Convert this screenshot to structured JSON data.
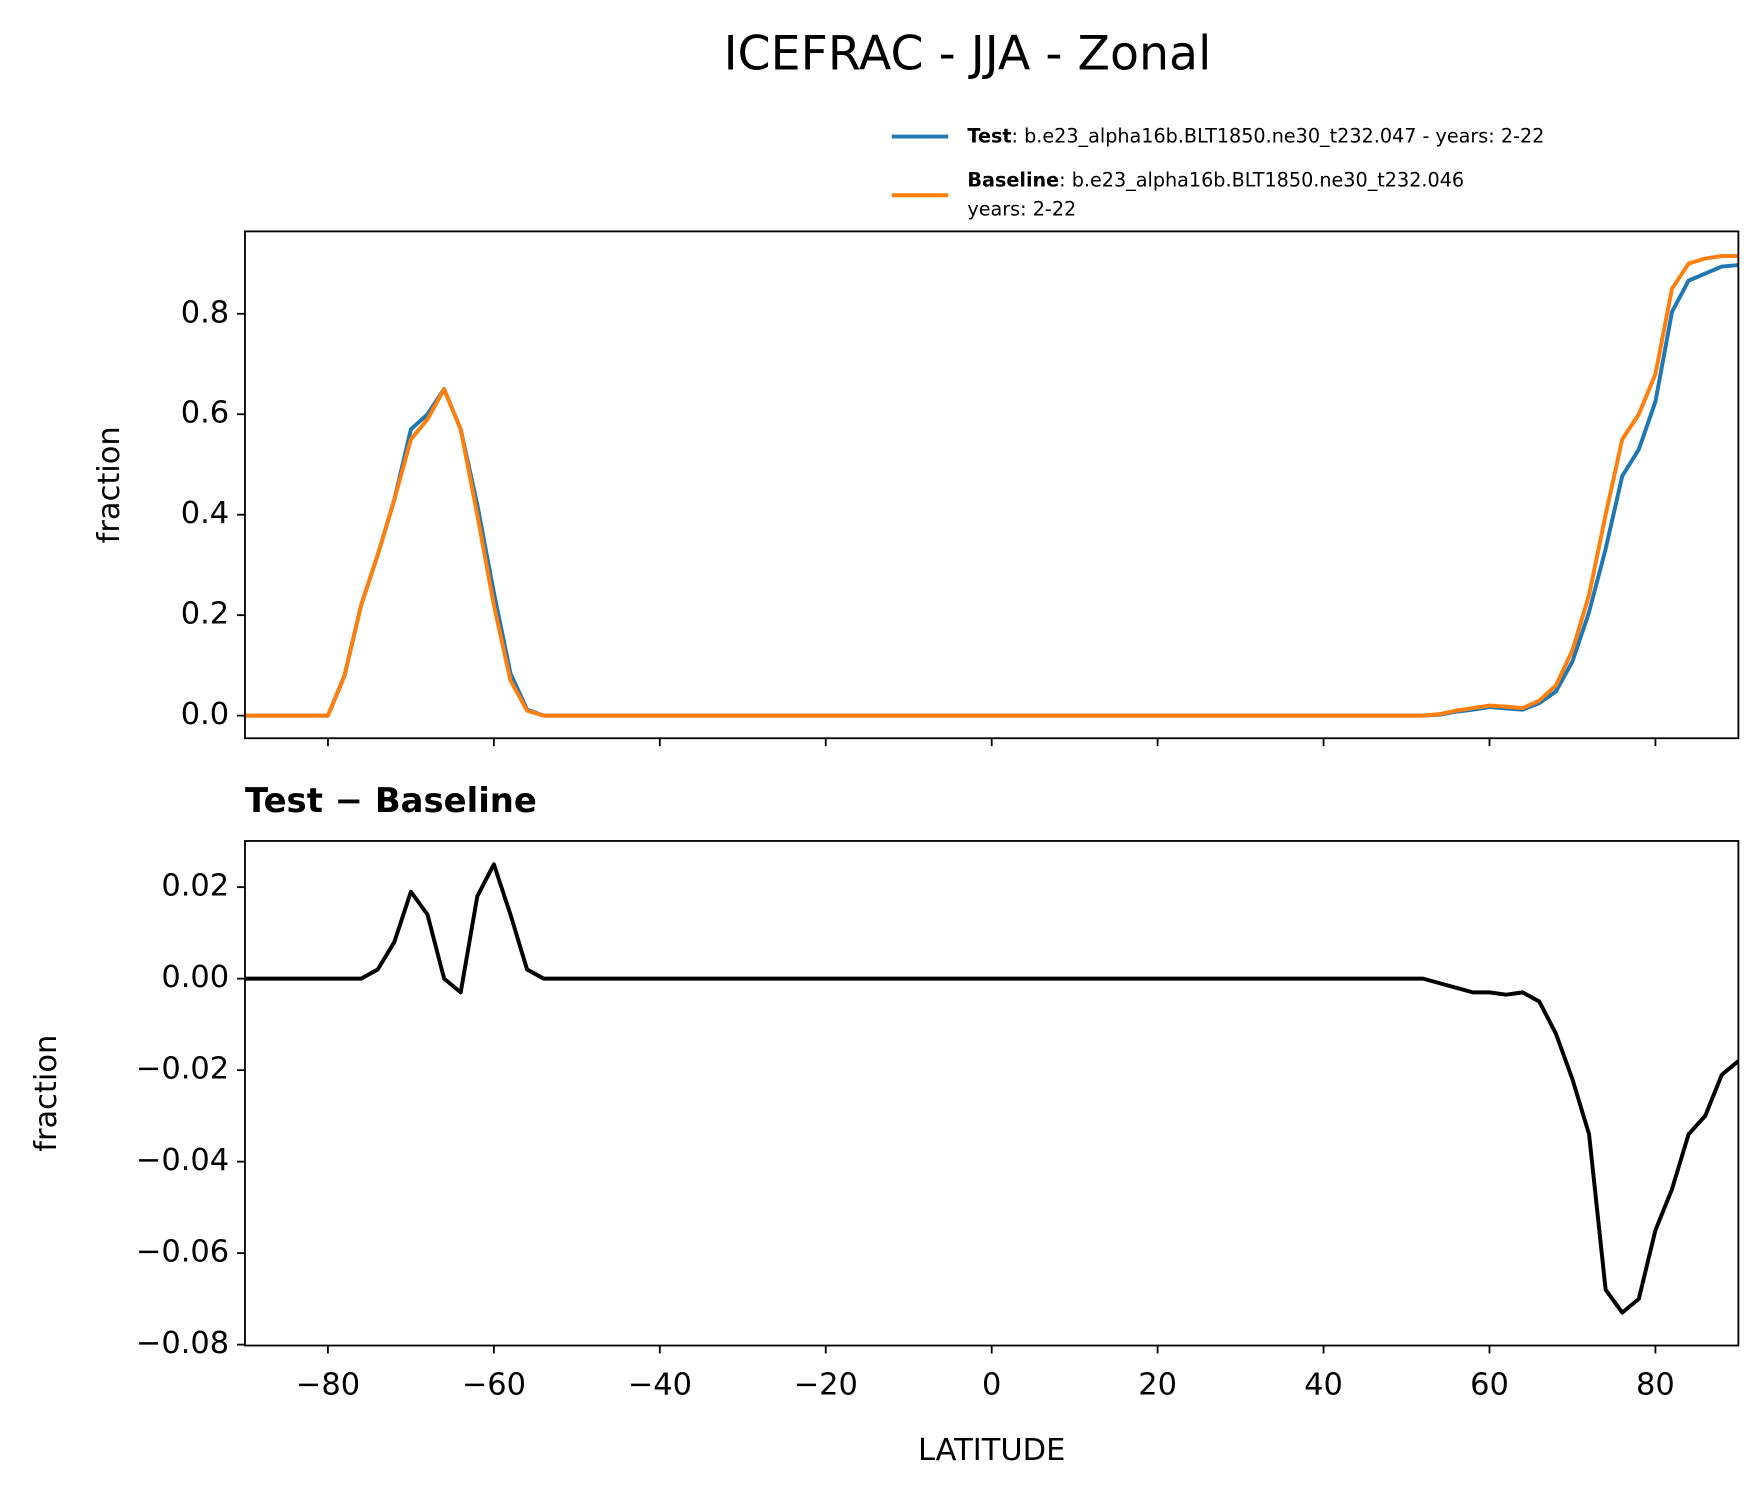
{
  "title": "ICEFRAC - JJA - Zonal",
  "chart_data": [
    {
      "type": "line",
      "ylabel": "fraction",
      "x": [
        -90,
        -88,
        -86,
        -84,
        -82,
        -80,
        -78,
        -76,
        -74,
        -72,
        -70,
        -68,
        -66,
        -64,
        -62,
        -60,
        -58,
        -56,
        -54,
        -52,
        -50,
        -48,
        -46,
        -44,
        -42,
        -40,
        -38,
        -36,
        -34,
        -32,
        -30,
        -28,
        -26,
        -24,
        -22,
        -20,
        -18,
        -16,
        -14,
        -12,
        -10,
        -8,
        -6,
        -4,
        -2,
        0,
        2,
        4,
        6,
        8,
        10,
        12,
        14,
        16,
        18,
        20,
        22,
        24,
        26,
        28,
        30,
        32,
        34,
        36,
        38,
        40,
        42,
        44,
        46,
        48,
        50,
        52,
        54,
        56,
        58,
        60,
        62,
        64,
        66,
        68,
        70,
        72,
        74,
        76,
        78,
        80,
        82,
        84,
        86,
        88,
        90
      ],
      "series": [
        {
          "name": "Test",
          "description": [
            ": b.e23_alpha16b.BLT1850.ne30_t232.047 - years: 2-22"
          ],
          "color": "#1f77b4",
          "values": [
            0,
            0,
            0,
            0,
            0,
            0,
            0.08,
            0.22,
            0.32,
            0.43,
            0.57,
            0.6,
            0.65,
            0.57,
            0.42,
            0.245,
            0.084,
            0.012,
            0,
            0,
            0,
            0,
            0,
            0,
            0,
            0,
            0,
            0,
            0,
            0,
            0,
            0,
            0,
            0,
            0,
            0,
            0,
            0,
            0,
            0,
            0,
            0,
            0,
            0,
            0,
            0,
            0,
            0,
            0,
            0,
            0,
            0,
            0,
            0,
            0,
            0,
            0,
            0,
            0,
            0,
            0,
            0,
            0,
            0,
            0,
            0,
            0,
            0,
            0,
            0,
            0,
            0,
            0.002,
            0.008,
            0.012,
            0.017,
            0.0145,
            0.012,
            0.025,
            0.048,
            0.108,
            0.206,
            0.332,
            0.477,
            0.53,
            0.625,
            0.804,
            0.866,
            0.88,
            0.894,
            0.897
          ]
        },
        {
          "name": "Baseline",
          "description": [
            ": b.e23_alpha16b.BLT1850.ne30_t232.046",
            "years: 2-22"
          ],
          "color": "#ff7f0e",
          "values": [
            0,
            0,
            0,
            0,
            0,
            0,
            0.08,
            0.22,
            0.32,
            0.43,
            0.55,
            0.59,
            0.65,
            0.57,
            0.4,
            0.22,
            0.07,
            0.01,
            0,
            0,
            0,
            0,
            0,
            0,
            0,
            0,
            0,
            0,
            0,
            0,
            0,
            0,
            0,
            0,
            0,
            0,
            0,
            0,
            0,
            0,
            0,
            0,
            0,
            0,
            0,
            0,
            0,
            0,
            0,
            0,
            0,
            0,
            0,
            0,
            0,
            0,
            0,
            0,
            0,
            0,
            0,
            0,
            0,
            0,
            0,
            0,
            0,
            0,
            0,
            0,
            0,
            0,
            0.003,
            0.01,
            0.015,
            0.02,
            0.018,
            0.015,
            0.03,
            0.06,
            0.13,
            0.24,
            0.4,
            0.55,
            0.6,
            0.68,
            0.85,
            0.9,
            0.91,
            0.915,
            0.915
          ]
        }
      ],
      "xlim": [
        -90,
        90
      ],
      "xticks": [
        -80,
        -60,
        -40,
        -20,
        0,
        20,
        40,
        60,
        80
      ],
      "ylim": [
        -0.045,
        0.964
      ],
      "yticks": [
        {
          "value": 0,
          "label": "0.0"
        },
        0.2,
        0.4,
        0.6,
        0.8
      ]
    },
    {
      "type": "line",
      "title": "Test − Baseline",
      "xlabel": "LATITUDE",
      "ylabel": "fraction",
      "x": [
        -90,
        -88,
        -86,
        -84,
        -82,
        -80,
        -78,
        -76,
        -74,
        -72,
        -70,
        -68,
        -66,
        -64,
        -62,
        -60,
        -58,
        -56,
        -54,
        -52,
        -50,
        -48,
        -46,
        -44,
        -42,
        -40,
        -38,
        -36,
        -34,
        -32,
        -30,
        -28,
        -26,
        -24,
        -22,
        -20,
        -18,
        -16,
        -14,
        -12,
        -10,
        -8,
        -6,
        -4,
        -2,
        0,
        2,
        4,
        6,
        8,
        10,
        12,
        14,
        16,
        18,
        20,
        22,
        24,
        26,
        28,
        30,
        32,
        34,
        36,
        38,
        40,
        42,
        44,
        46,
        48,
        50,
        52,
        54,
        56,
        58,
        60,
        62,
        64,
        66,
        68,
        70,
        72,
        74,
        76,
        78,
        80,
        82,
        84,
        86,
        88,
        90
      ],
      "series": [
        {
          "color": "#000000",
          "values": [
            0,
            0,
            0,
            0,
            0,
            0,
            0,
            0,
            0.002,
            0.008,
            0.019,
            0.014,
            0,
            -0.003,
            0.018,
            0.025,
            0.014,
            0.002,
            0,
            0,
            0,
            0,
            0,
            0,
            0,
            0,
            0,
            0,
            0,
            0,
            0,
            0,
            0,
            0,
            0,
            0,
            0,
            0,
            0,
            0,
            0,
            0,
            0,
            0,
            0,
            0,
            0,
            0,
            0,
            0,
            0,
            0,
            0,
            0,
            0,
            0,
            0,
            0,
            0,
            0,
            0,
            0,
            0,
            0,
            0,
            0,
            0,
            0,
            0,
            0,
            0,
            0,
            -0.001,
            -0.002,
            -0.003,
            -0.003,
            -0.0035,
            -0.003,
            -0.005,
            -0.012,
            -0.022,
            -0.034,
            -0.068,
            -0.073,
            -0.07,
            -0.055,
            -0.046,
            -0.034,
            -0.03,
            -0.021,
            -0.018
          ]
        }
      ],
      "xlim": [
        -90,
        90
      ],
      "xticks": [
        {
          "value": -80,
          "label": "−80"
        },
        {
          "value": -60,
          "label": "−60"
        },
        {
          "value": -40,
          "label": "−40"
        },
        {
          "value": -20,
          "label": "−20"
        },
        0,
        20,
        40,
        60,
        80
      ],
      "ylim": [
        -0.0802,
        0.0301
      ],
      "yticks": [
        {
          "value": -0.08,
          "label": "−0.08"
        },
        {
          "value": -0.06,
          "label": "−0.06"
        },
        {
          "value": -0.04,
          "label": "−0.04"
        },
        {
          "value": -0.02,
          "label": "−0.02"
        },
        {
          "value": 0,
          "label": "0.00"
        },
        0.02
      ]
    }
  ]
}
